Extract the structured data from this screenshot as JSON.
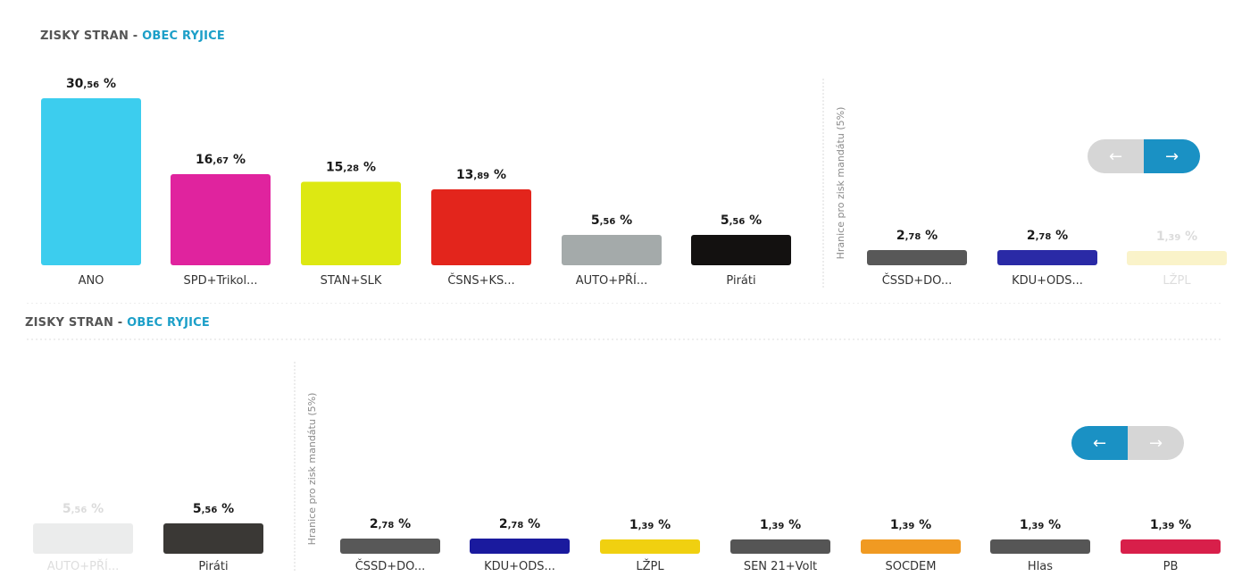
{
  "panels": [
    {
      "heading_prefix": "ZISKY STRAN",
      "heading_sep": " - ",
      "heading_accent": "OBEC RYJICE",
      "threshold_label": "Hranice pro zisk mandátu (5%)",
      "nav": {
        "prev_icon": "arrow-left-icon",
        "next_icon": "arrow-right-icon",
        "prev_enabled": false,
        "next_enabled": true
      }
    },
    {
      "heading_prefix": "ZISKY STRAN",
      "heading_sep": " - ",
      "heading_accent": "OBEC RYJICE",
      "threshold_label": "Hranice pro zisk mandátu (5%)",
      "nav": {
        "prev_icon": "arrow-left-icon",
        "next_icon": "arrow-right-icon",
        "prev_enabled": true,
        "next_enabled": false
      }
    }
  ],
  "chart_data": [
    {
      "type": "bar",
      "title": "ZISKY STRAN - OBEC RYJICE",
      "ylim": [
        0,
        30.56
      ],
      "threshold": 5,
      "categories": [
        "ANO",
        "SPD+Trikol...",
        "STAN+SLK",
        "ČSNS+KS...",
        "AUTO+PŘÍ...",
        "Piráti",
        "ČSSD+DO...",
        "KDU+ODS...",
        "LŽPL"
      ],
      "values": [
        30.56,
        16.67,
        15.28,
        13.89,
        5.56,
        5.56,
        2.78,
        2.78,
        1.39
      ],
      "value_labels": [
        {
          "int": "30",
          "dec": ",56",
          "unit": " %"
        },
        {
          "int": "16",
          "dec": ",67",
          "unit": " %"
        },
        {
          "int": "15",
          "dec": ",28",
          "unit": " %"
        },
        {
          "int": "13",
          "dec": ",89",
          "unit": " %"
        },
        {
          "int": "5",
          "dec": ",56",
          "unit": " %"
        },
        {
          "int": "5",
          "dec": ",56",
          "unit": " %"
        },
        {
          "int": "2",
          "dec": ",78",
          "unit": " %"
        },
        {
          "int": "2",
          "dec": ",78",
          "unit": " %"
        },
        {
          "int": "1",
          "dec": ",39",
          "unit": " %"
        }
      ],
      "colors": [
        "#3ccdee",
        "#e0239e",
        "#dde812",
        "#e3251c",
        "#a4aaaa",
        "#131110",
        "#585858",
        "#2a2aa6",
        "#f4e58a"
      ],
      "faded": [
        false,
        false,
        false,
        false,
        false,
        false,
        false,
        false,
        true
      ]
    },
    {
      "type": "bar",
      "title": "ZISKY STRAN - OBEC RYJICE",
      "ylim": [
        0,
        30.56
      ],
      "threshold": 5,
      "categories": [
        "AUTO+PŘÍ...",
        "Piráti",
        "ČSSD+DO...",
        "KDU+ODS...",
        "LŽPL",
        "SEN 21+Volt",
        "SOCDEM",
        "Hlas",
        "PB"
      ],
      "values": [
        5.56,
        5.56,
        2.78,
        2.78,
        1.39,
        1.39,
        1.39,
        1.39,
        1.39
      ],
      "value_labels": [
        {
          "int": "5",
          "dec": ",56",
          "unit": " %"
        },
        {
          "int": "5",
          "dec": ",56",
          "unit": " %"
        },
        {
          "int": "2",
          "dec": ",78",
          "unit": " %"
        },
        {
          "int": "2",
          "dec": ",78",
          "unit": " %"
        },
        {
          "int": "1",
          "dec": ",39",
          "unit": " %"
        },
        {
          "int": "1",
          "dec": ",39",
          "unit": " %"
        },
        {
          "int": "1",
          "dec": ",39",
          "unit": " %"
        },
        {
          "int": "1",
          "dec": ",39",
          "unit": " %"
        },
        {
          "int": "1",
          "dec": ",39",
          "unit": " %"
        }
      ],
      "colors": [
        "#d4d6d6",
        "#3a3835",
        "#585858",
        "#1a1a9e",
        "#f0d010",
        "#555555",
        "#f09a22",
        "#565656",
        "#d81f4a"
      ],
      "faded": [
        true,
        false,
        false,
        false,
        false,
        false,
        false,
        false,
        false
      ]
    }
  ]
}
